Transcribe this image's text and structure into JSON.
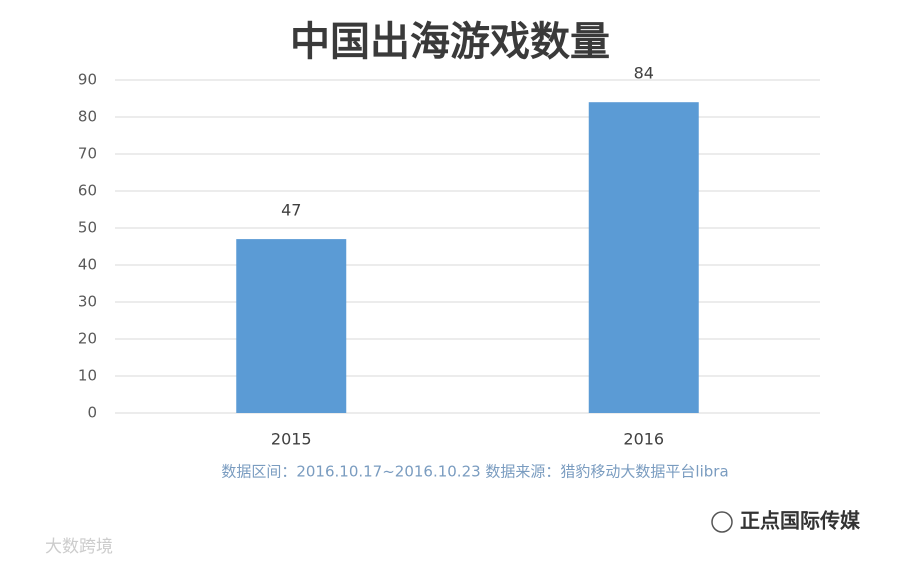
{
  "chart_data": {
    "type": "bar",
    "title": "中国出海游戏数量",
    "categories": [
      "2015",
      "2016"
    ],
    "values": [
      47,
      84
    ],
    "color": "#5b9bd5",
    "ylim": [
      0,
      90
    ],
    "yticks": [
      0,
      10,
      20,
      30,
      40,
      50,
      60,
      70,
      80,
      90
    ],
    "grid": true,
    "source": "数据区间：2016.10.17~2016.10.23  数据来源：猎豹移动大数据平台libra"
  },
  "watermarks": [
    "正点国际传媒",
    "大数跨境"
  ]
}
